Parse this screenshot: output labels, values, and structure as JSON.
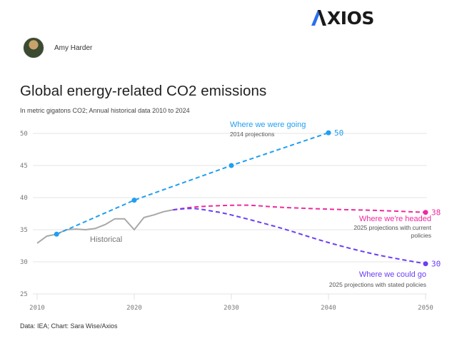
{
  "brand": {
    "logo_text": "XIOS",
    "logo_full": "AXIOS",
    "accent": "#2a6ff0"
  },
  "author": {
    "name": "Amy Harder",
    "avatar": "author-photo"
  },
  "header": {
    "title": "Global energy-related CO2 emissions",
    "subtitle": "In metric gigatons CO2; Annual historical data 2010 to 2024"
  },
  "footer": {
    "source": "Data: IEA; Chart: Sara Wise/Axios"
  },
  "chart_data": {
    "type": "line",
    "title": "Global energy-related CO2 emissions",
    "subtitle": "In metric gigatons CO2; Annual historical data 2010 to 2024",
    "xlabel": "",
    "ylabel": "",
    "xlim": [
      2010,
      2050
    ],
    "ylim": [
      25,
      50
    ],
    "x_ticks": [
      2010,
      2020,
      2030,
      2040,
      2050
    ],
    "y_ticks": [
      25,
      30,
      35,
      40,
      45,
      50
    ],
    "grid": true,
    "series": [
      {
        "name": "Historical",
        "label": "Historical",
        "color": "#a8a8a8",
        "style": "solid",
        "x": [
          2010,
          2011,
          2012,
          2013,
          2014,
          2015,
          2016,
          2017,
          2018,
          2019,
          2020,
          2021,
          2022,
          2023,
          2024
        ],
        "values": [
          32.9,
          34.0,
          34.3,
          35.0,
          35.1,
          35.0,
          35.2,
          35.8,
          36.7,
          36.7,
          35.0,
          36.9,
          37.3,
          37.8,
          38.1
        ]
      },
      {
        "name": "Where we were going",
        "subtitle": "2014 projections",
        "color": "#1f9ff0",
        "style": "dashed",
        "x": [
          2012,
          2020,
          2030,
          2040
        ],
        "values": [
          34.3,
          39.6,
          45.0,
          50.1
        ],
        "markers": [
          2012,
          2020,
          2030,
          2040
        ],
        "end_label": "50"
      },
      {
        "name": "Where we're headed",
        "subtitle": "2025 projections with current policies",
        "color": "#ee2a9e",
        "style": "dashed",
        "x": [
          2024,
          2026,
          2028,
          2030,
          2032,
          2035,
          2040,
          2045,
          2050
        ],
        "values": [
          38.1,
          38.5,
          38.7,
          38.8,
          38.8,
          38.5,
          38.2,
          38.0,
          37.7
        ],
        "markers": [
          2050
        ],
        "end_label": "38"
      },
      {
        "name": "Where we could go",
        "subtitle": "2025 projections with stated policies",
        "color": "#6b3df5",
        "style": "dashed",
        "x": [
          2024,
          2026,
          2028,
          2030,
          2035,
          2040,
          2045,
          2050
        ],
        "values": [
          38.1,
          38.3,
          37.9,
          37.3,
          35.3,
          33.0,
          31.1,
          29.7
        ],
        "markers": [
          2050
        ],
        "end_label": "30"
      }
    ]
  }
}
